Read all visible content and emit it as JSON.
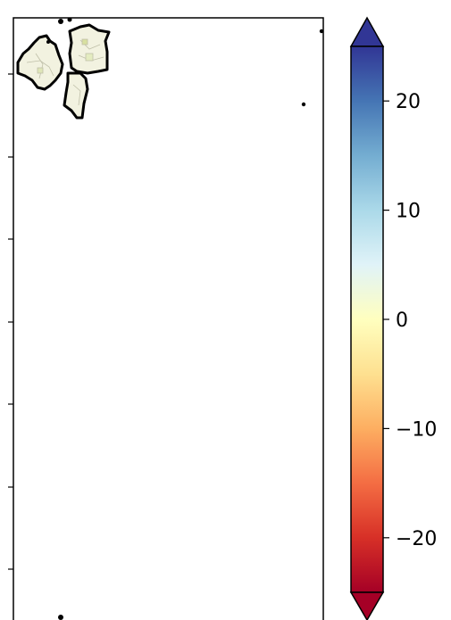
{
  "figure": {
    "type": "choropleth-map",
    "colormap": "RdYlBu",
    "extend": "both"
  },
  "colorbar": {
    "ticks": [
      {
        "value": 20,
        "label": "20"
      },
      {
        "value": 10,
        "label": "10"
      },
      {
        "value": 0,
        "label": "0"
      },
      {
        "value": -10,
        "label": "−10"
      },
      {
        "value": -20,
        "label": "−20"
      }
    ],
    "range": [
      -25,
      25
    ],
    "colors": {
      "low_extend": "#a50026",
      "high_extend": "#313695",
      "stops": [
        "#a50026",
        "#d73027",
        "#f46d43",
        "#fdae61",
        "#fee090",
        "#ffffbf",
        "#e0f3f8",
        "#abd9e9",
        "#74add1",
        "#4575b4",
        "#313695"
      ]
    }
  },
  "map": {
    "region_outline_color": "#000000",
    "region_fill_color": "#f2f2e0"
  }
}
